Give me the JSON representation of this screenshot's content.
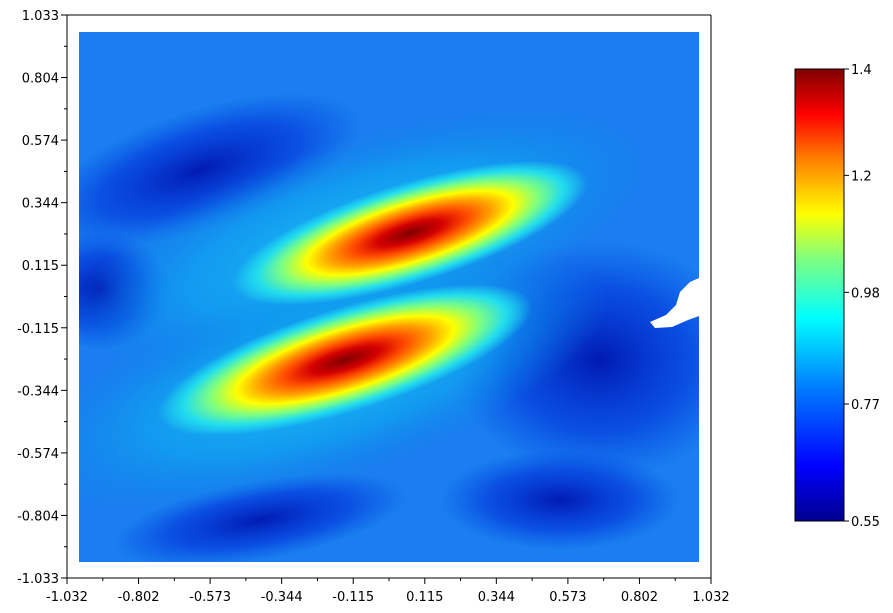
{
  "chart_data": {
    "type": "heatmap",
    "title": "",
    "xlabel": "",
    "ylabel": "",
    "xlim": [
      -1.032,
      1.032
    ],
    "ylim": [
      -1.033,
      1.033
    ],
    "x_tick_labels": [
      "-1.032",
      "-0.802",
      "-0.573",
      "-0.344",
      "-0.115",
      "0.115",
      "0.344",
      "0.573",
      "0.802",
      "1.032"
    ],
    "y_tick_labels": [
      "1.033",
      "0.804",
      "0.574",
      "0.344",
      "0.115",
      "-0.115",
      "-0.344",
      "-0.574",
      "-0.804",
      "-1.033"
    ],
    "colorbar": {
      "min": 0.55,
      "max": 1.4,
      "tick_labels": [
        "1.4",
        "1.2",
        "0.98",
        "0.77",
        "0.55"
      ],
      "colormap": "jet"
    },
    "features": [
      {
        "description_value": "upper ridge peak",
        "x": 0.08,
        "y": 0.25,
        "value": 1.4
      },
      {
        "description_value": "lower ridge peak",
        "x": -0.08,
        "y": -0.22,
        "value": 1.4
      },
      {
        "description_value": "background minimum",
        "value": 0.55
      }
    ],
    "grid": false
  }
}
